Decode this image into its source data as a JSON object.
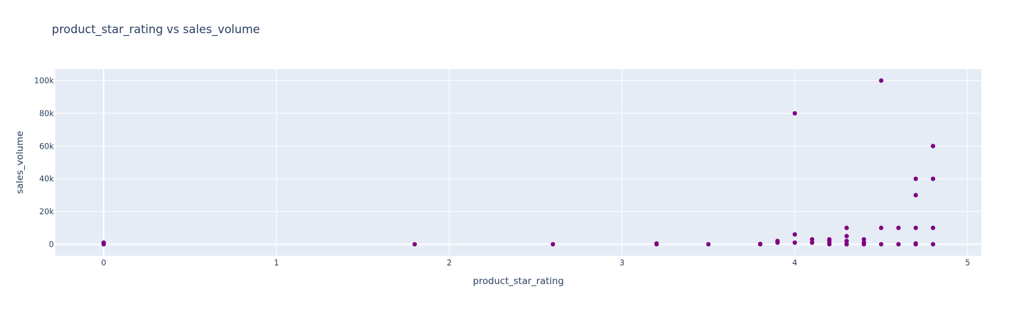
{
  "chart_data": {
    "type": "scatter",
    "title": "product_star_rating vs sales_volume",
    "xlabel": "product_star_rating",
    "ylabel": "sales_volume",
    "xlim": [
      -0.28,
      5.08
    ],
    "ylim": [
      -7000,
      107000
    ],
    "xticks": [
      0,
      1,
      2,
      3,
      4,
      5
    ],
    "xtick_labels": [
      "0",
      "1",
      "2",
      "3",
      "4",
      "5"
    ],
    "yticks": [
      0,
      20000,
      40000,
      60000,
      80000,
      100000
    ],
    "ytick_labels": [
      "0",
      "20k",
      "40k",
      "60k",
      "80k",
      "100k"
    ],
    "grid": true,
    "marker_color": "#800080",
    "plot_bgcolor": "#e5ecf6",
    "series": [
      {
        "x": [
          0,
          0,
          0,
          1.8,
          2.6,
          3.2,
          3.2,
          3.5,
          3.8,
          3.8,
          3.9,
          3.9,
          4.0,
          4.0,
          4.0,
          4.1,
          4.1,
          4.2,
          4.2,
          4.2,
          4.2,
          4.3,
          4.3,
          4.3,
          4.3,
          4.3,
          4.4,
          4.4,
          4.4,
          4.5,
          4.5,
          4.5,
          4.6,
          4.6,
          4.7,
          4.7,
          4.7,
          4.7,
          4.7,
          4.8,
          4.8,
          4.8,
          4.8
        ],
        "y": [
          0,
          500,
          1000,
          0,
          0,
          0,
          500,
          0,
          0,
          200,
          1000,
          2000,
          80000,
          6000,
          1000,
          1000,
          3000,
          0,
          500,
          2000,
          3000,
          10000,
          5000,
          2000,
          0,
          0,
          3000,
          1000,
          0,
          100000,
          10000,
          0,
          10000,
          0,
          40000,
          30000,
          10000,
          500,
          0,
          60000,
          40000,
          10000,
          0
        ]
      }
    ]
  }
}
